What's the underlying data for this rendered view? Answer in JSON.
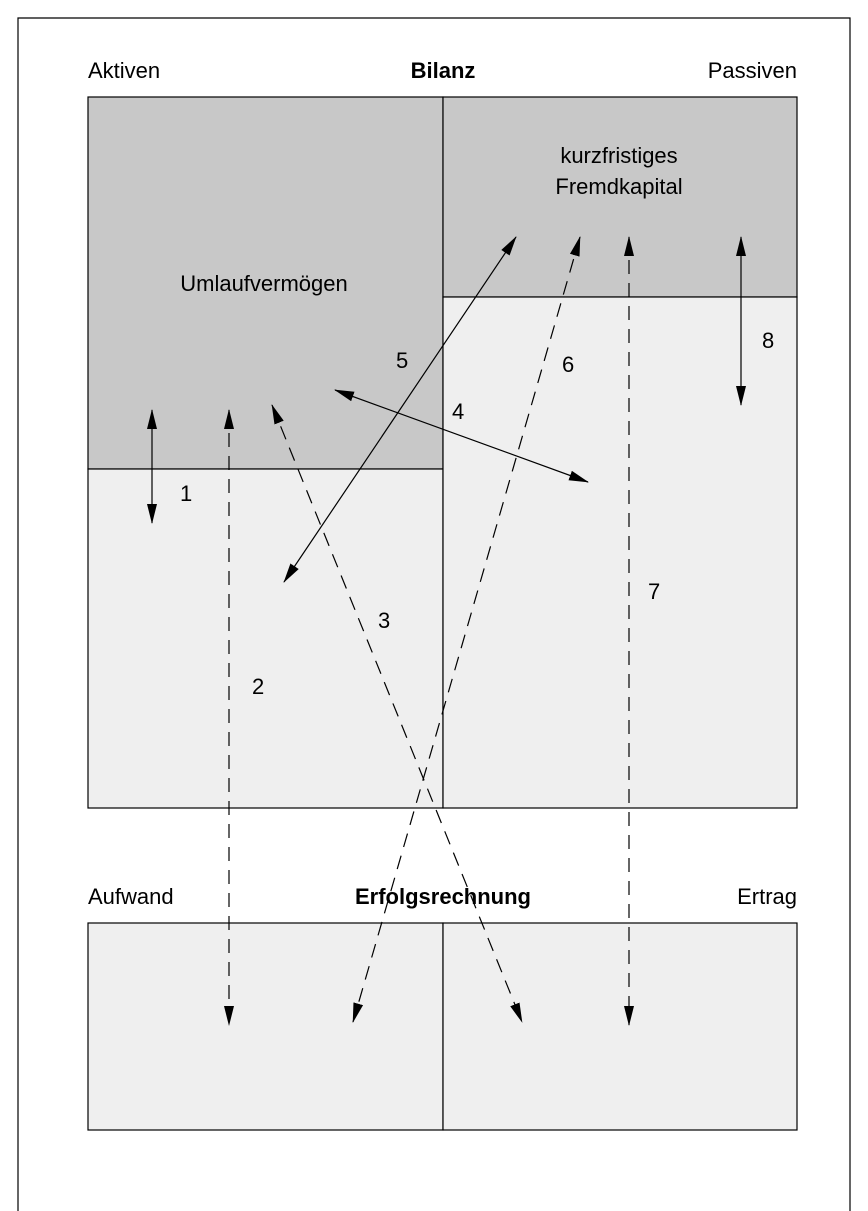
{
  "bilanz": {
    "left": "Aktiven",
    "title": "Bilanz",
    "right": "Passiven",
    "assets": "Umlaufvermögen",
    "liabilities": [
      "kurzfristiges",
      "Fremdkapital"
    ]
  },
  "erfolgsrechnung": {
    "left": "Aufwand",
    "title": "Erfolgsrechnung",
    "right": "Ertrag"
  },
  "arrows": [
    "1",
    "2",
    "3",
    "4",
    "5",
    "6",
    "7",
    "8"
  ]
}
